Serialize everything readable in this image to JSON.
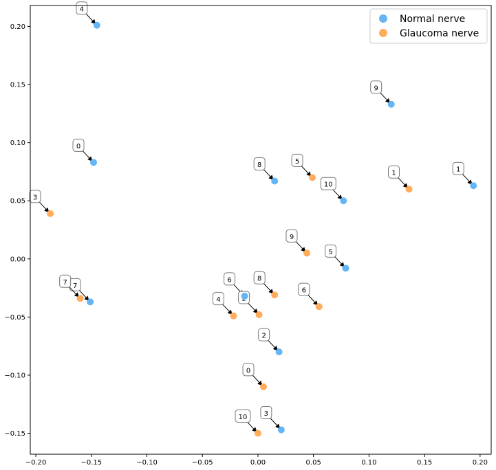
{
  "chart_data": {
    "type": "scatter",
    "title": "",
    "xlabel": "",
    "ylabel": "",
    "xlim": [
      -0.205,
      0.21
    ],
    "ylim": [
      -0.168,
      0.218
    ],
    "xticks": [
      -0.2,
      -0.15,
      -0.1,
      -0.05,
      0.0,
      0.05,
      0.1,
      0.15,
      0.2
    ],
    "yticks": [
      -0.15,
      -0.1,
      -0.05,
      0.0,
      0.05,
      0.1,
      0.15,
      0.2
    ],
    "xtick_labels": [
      "−0.20",
      "−0.15",
      "−0.10",
      "−0.05",
      "0.00",
      "0.05",
      "0.10",
      "0.15",
      "0.20"
    ],
    "ytick_labels": [
      "−0.15",
      "−0.10",
      "−0.05",
      "0.00",
      "0.05",
      "0.10",
      "0.15",
      "0.20"
    ],
    "grid": false,
    "legend_position": "top-right",
    "series": [
      {
        "name": "Normal nerve",
        "color": "#64b5f6",
        "points": [
          {
            "label": "0",
            "x": -0.148,
            "y": 0.083
          },
          {
            "label": "1",
            "x": 0.194,
            "y": 0.063
          },
          {
            "label": "2",
            "x": 0.019,
            "y": -0.08
          },
          {
            "label": "3",
            "x": 0.021,
            "y": -0.147
          },
          {
            "label": "4",
            "x": -0.145,
            "y": 0.201
          },
          {
            "label": "5",
            "x": 0.079,
            "y": -0.008
          },
          {
            "label": "6",
            "x": -0.012,
            "y": -0.032
          },
          {
            "label": "7",
            "x": -0.151,
            "y": -0.037
          },
          {
            "label": "8",
            "x": 0.015,
            "y": 0.067
          },
          {
            "label": "9",
            "x": 0.12,
            "y": 0.133
          },
          {
            "label": "10",
            "x": 0.077,
            "y": 0.05
          }
        ]
      },
      {
        "name": "Glaucoma nerve",
        "color": "#ffad5c",
        "points": [
          {
            "label": "0",
            "x": 0.005,
            "y": -0.11
          },
          {
            "label": "1",
            "x": 0.136,
            "y": 0.06
          },
          {
            "label": "2",
            "x": 0.001,
            "y": -0.048
          },
          {
            "label": "3",
            "x": -0.187,
            "y": 0.039
          },
          {
            "label": "4",
            "x": -0.022,
            "y": -0.049
          },
          {
            "label": "5",
            "x": 0.049,
            "y": 0.07
          },
          {
            "label": "6",
            "x": 0.055,
            "y": -0.041
          },
          {
            "label": "7",
            "x": -0.16,
            "y": -0.034
          },
          {
            "label": "8",
            "x": 0.015,
            "y": -0.031
          },
          {
            "label": "9",
            "x": 0.044,
            "y": 0.005
          },
          {
            "label": "10",
            "x": 0.0,
            "y": -0.15
          }
        ]
      }
    ]
  }
}
